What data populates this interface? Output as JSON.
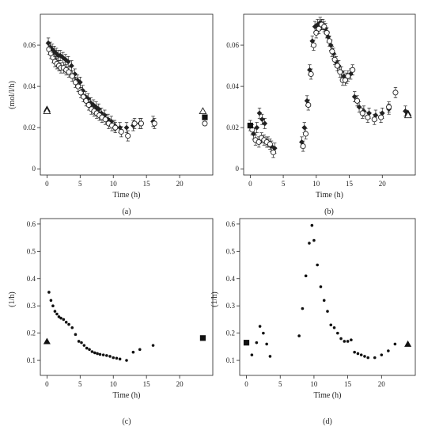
{
  "chart_data": [
    {
      "panel": "(a)",
      "type": "scatter",
      "xlabel": "Time (h)",
      "ylabel": "(mol/l/h)",
      "xlim": [
        -1,
        25
      ],
      "ylim": [
        -0.003,
        0.075
      ],
      "xticks": [
        0,
        5,
        10,
        15,
        20
      ],
      "yticks": [
        0,
        0.02,
        0.04,
        0.06
      ],
      "ytick_labels": [
        "0",
        "0.02",
        "0.04",
        "0.06"
      ],
      "grid": false,
      "series": [
        {
          "marker": "filled-diamond",
          "error_bar": 0.0025,
          "x": [
            0.2,
            0.5,
            0.8,
            1.1,
            1.4,
            1.7,
            2.0,
            2.4,
            2.8,
            3.2,
            3.7,
            4.2,
            4.6,
            5.0,
            5.4,
            5.8,
            6.2,
            6.6,
            7.0,
            7.4,
            7.8,
            8.2,
            8.7,
            9.2,
            9.7,
            10.2,
            11.0,
            12.0,
            13.0,
            14.0,
            16.0
          ],
          "y": [
            0.061,
            0.059,
            0.058,
            0.057,
            0.056,
            0.055,
            0.055,
            0.054,
            0.053,
            0.052,
            0.05,
            0.046,
            0.043,
            0.042,
            0.038,
            0.035,
            0.034,
            0.032,
            0.031,
            0.03,
            0.029,
            0.027,
            0.026,
            0.024,
            0.023,
            0.021,
            0.02,
            0.02,
            0.021,
            0.022,
            0.023
          ]
        },
        {
          "marker": "open-circle",
          "error_bar": 0.0025,
          "x": [
            0.3,
            0.6,
            0.9,
            1.2,
            1.5,
            1.8,
            2.1,
            2.5,
            2.9,
            3.3,
            3.8,
            4.3,
            4.7,
            5.1,
            5.5,
            5.9,
            6.3,
            6.7,
            7.1,
            7.5,
            7.9,
            8.3,
            8.8,
            9.3,
            9.8,
            10.3,
            11.2,
            12.2,
            13.2,
            14.2,
            16.2
          ],
          "y": [
            0.058,
            0.056,
            0.054,
            0.052,
            0.051,
            0.05,
            0.049,
            0.049,
            0.048,
            0.047,
            0.045,
            0.042,
            0.04,
            0.037,
            0.035,
            0.033,
            0.031,
            0.029,
            0.028,
            0.027,
            0.026,
            0.025,
            0.024,
            0.022,
            0.021,
            0.02,
            0.018,
            0.016,
            0.022,
            0.022,
            0.022
          ]
        },
        {
          "marker": "filled-triangle",
          "x": [
            0
          ],
          "y": [
            0.029
          ]
        },
        {
          "marker": "open-triangle",
          "x": [
            0,
            23.5
          ],
          "y": [
            0.028,
            0.028
          ]
        },
        {
          "marker": "filled-square",
          "x": [
            23.8
          ],
          "y": [
            0.025
          ]
        },
        {
          "marker": "open-circle",
          "x": [
            23.8
          ],
          "y": [
            0.022
          ]
        }
      ]
    },
    {
      "panel": "(b)",
      "type": "scatter",
      "xlabel": "Time (h)",
      "ylabel": "",
      "xlim": [
        -1,
        25
      ],
      "ylim": [
        -0.003,
        0.075
      ],
      "xticks": [
        0,
        5,
        10,
        15,
        20
      ],
      "yticks": [
        0,
        0.02,
        0.04,
        0.06
      ],
      "ytick_labels": [
        "0",
        "0.02",
        "0.04",
        "0.06"
      ],
      "grid": false,
      "series": [
        {
          "marker": "filled-diamond",
          "error_bar": 0.0025,
          "x": [
            0.0,
            0.5,
            1.0,
            1.4,
            1.8,
            2.2,
            2.7,
            3.2,
            3.7,
            7.8,
            8.2,
            8.6,
            9.0,
            9.4,
            9.8,
            10.2,
            10.6,
            11.0,
            11.4,
            11.8,
            12.2,
            12.6,
            13.0,
            13.4,
            13.8,
            14.2,
            14.6,
            15.2,
            15.8,
            16.5,
            17.2,
            18.0,
            19.0,
            20.0,
            21.0,
            23.5
          ],
          "y": [
            0.021,
            0.017,
            0.02,
            0.027,
            0.024,
            0.022,
            0.013,
            0.011,
            0.01,
            0.013,
            0.02,
            0.033,
            0.048,
            0.062,
            0.069,
            0.07,
            0.071,
            0.07,
            0.068,
            0.064,
            0.06,
            0.056,
            0.052,
            0.05,
            0.047,
            0.045,
            0.044,
            0.046,
            0.035,
            0.03,
            0.028,
            0.027,
            0.026,
            0.027,
            0.029,
            0.028
          ]
        },
        {
          "marker": "open-circle",
          "error_bar": 0.0025,
          "x": [
            0.3,
            0.8,
            1.3,
            1.7,
            2.1,
            2.5,
            3.0,
            3.5,
            8.0,
            8.4,
            8.8,
            9.2,
            9.6,
            10.0,
            10.4,
            10.8,
            11.2,
            11.6,
            12.0,
            12.4,
            12.8,
            13.2,
            13.6,
            14.0,
            14.4,
            14.8,
            15.5,
            16.2,
            17.0,
            17.8,
            18.8,
            19.8,
            21.0,
            22.0
          ],
          "y": [
            0.019,
            0.014,
            0.013,
            0.015,
            0.014,
            0.013,
            0.012,
            0.008,
            0.011,
            0.017,
            0.031,
            0.046,
            0.06,
            0.066,
            0.068,
            0.07,
            0.069,
            0.066,
            0.062,
            0.057,
            0.053,
            0.05,
            0.047,
            0.043,
            0.043,
            0.045,
            0.048,
            0.033,
            0.027,
            0.025,
            0.024,
            0.025,
            0.03,
            0.037
          ]
        },
        {
          "marker": "filled-square",
          "x": [
            0
          ],
          "y": [
            0.021
          ]
        },
        {
          "marker": "filled-triangle",
          "x": [
            23.9
          ],
          "y": [
            0.027
          ]
        },
        {
          "marker": "open-triangle",
          "x": [
            23.9
          ],
          "y": [
            0.026
          ]
        }
      ]
    },
    {
      "panel": "(c)",
      "type": "scatter",
      "xlabel": "Time (h)",
      "ylabel": "(1/h)",
      "xlim": [
        -1,
        25
      ],
      "ylim": [
        0.045,
        0.62
      ],
      "xticks": [
        0,
        5,
        10,
        15,
        20
      ],
      "yticks": [
        0.1,
        0.2,
        0.3,
        0.4,
        0.5,
        0.6
      ],
      "ytick_labels": [
        "0.1",
        "0.2",
        "0.3",
        "0.4",
        "0.5",
        "0.6"
      ],
      "grid": false,
      "series": [
        {
          "marker": "dot",
          "x": [
            0.3,
            0.6,
            0.9,
            1.2,
            1.5,
            1.8,
            2.1,
            2.5,
            2.9,
            3.3,
            3.8,
            4.3,
            4.8,
            5.2,
            5.6,
            6.0,
            6.4,
            6.8,
            7.2,
            7.6,
            8.0,
            8.5,
            9.0,
            9.5,
            10.0,
            10.5,
            11.0,
            12.0,
            13.0,
            14.0,
            16.0
          ],
          "y": [
            0.35,
            0.32,
            0.3,
            0.28,
            0.27,
            0.26,
            0.255,
            0.25,
            0.24,
            0.232,
            0.22,
            0.195,
            0.17,
            0.165,
            0.155,
            0.145,
            0.14,
            0.132,
            0.128,
            0.125,
            0.122,
            0.12,
            0.118,
            0.115,
            0.11,
            0.108,
            0.105,
            0.1,
            0.13,
            0.14,
            0.155
          ]
        },
        {
          "marker": "filled-triangle",
          "x": [
            0
          ],
          "y": [
            0.17
          ]
        },
        {
          "marker": "filled-square",
          "x": [
            23.5
          ],
          "y": [
            0.182
          ]
        }
      ]
    },
    {
      "panel": "(d)",
      "type": "scatter",
      "xlabel": "Time (h)",
      "ylabel": "(1/h)",
      "xlim": [
        -1,
        25
      ],
      "ylim": [
        0.045,
        0.62
      ],
      "xticks": [
        0,
        5,
        10,
        15,
        20
      ],
      "yticks": [
        0.1,
        0.2,
        0.3,
        0.4,
        0.5,
        0.6
      ],
      "ytick_labels": [
        "0.1",
        "0.2",
        "0.3",
        "0.4",
        "0.5",
        "0.6"
      ],
      "grid": false,
      "series": [
        {
          "marker": "dot",
          "x": [
            0.8,
            1.5,
            2.0,
            2.5,
            3.0,
            3.5,
            7.8,
            8.3,
            8.8,
            9.3,
            9.7,
            10.0,
            10.5,
            11.0,
            11.5,
            12.0,
            12.5,
            13.0,
            13.5,
            14.0,
            14.5,
            15.0,
            15.5,
            16.0,
            16.5,
            17.0,
            17.5,
            18.0,
            19.0,
            20.0,
            21.0,
            22.0
          ],
          "y": [
            0.12,
            0.165,
            0.225,
            0.2,
            0.16,
            0.115,
            0.19,
            0.29,
            0.41,
            0.53,
            0.595,
            0.54,
            0.45,
            0.37,
            0.32,
            0.28,
            0.23,
            0.22,
            0.2,
            0.18,
            0.17,
            0.17,
            0.175,
            0.13,
            0.125,
            0.12,
            0.115,
            0.11,
            0.11,
            0.12,
            0.135,
            0.16
          ]
        },
        {
          "marker": "filled-square",
          "x": [
            0
          ],
          "y": [
            0.165
          ]
        },
        {
          "marker": "filled-triangle",
          "x": [
            23.9
          ],
          "y": [
            0.16
          ]
        }
      ]
    }
  ]
}
